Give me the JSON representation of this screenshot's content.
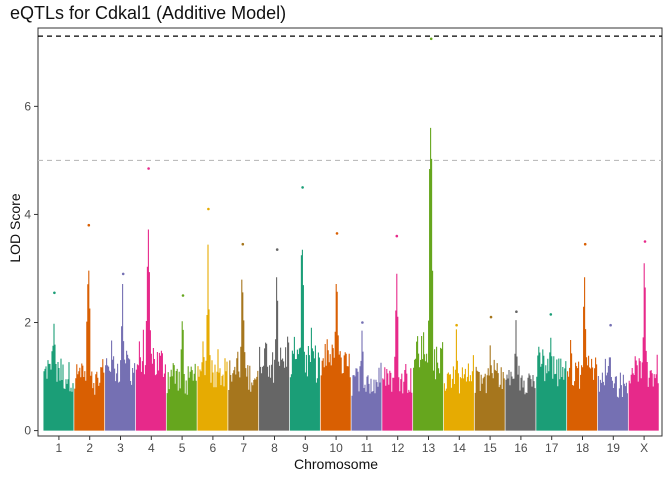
{
  "chart_data": {
    "type": "scatter",
    "title": "eQTLs for Cdkal1 (Additive Model)",
    "xlabel": "Chromosome",
    "ylabel": "LOD Score",
    "ylim": [
      -0.1,
      7.45
    ],
    "yticks": [
      0,
      2,
      4,
      6
    ],
    "grid": false,
    "legend": "none",
    "thresholds": [
      {
        "value": 7.3,
        "style": "dashed",
        "color": "#000000"
      },
      {
        "value": 5.0,
        "style": "dashed",
        "color": "#bdbdbd"
      }
    ],
    "chromosomes": [
      {
        "label": "1",
        "color": "#1b9e77",
        "max_lod": 2.55,
        "base_lod": 1.3
      },
      {
        "label": "2",
        "color": "#d95f02",
        "max_lod": 3.8,
        "base_lod": 1.2
      },
      {
        "label": "3",
        "color": "#7570b3",
        "max_lod": 2.9,
        "base_lod": 1.5
      },
      {
        "label": "4",
        "color": "#e7298a",
        "max_lod": 4.85,
        "base_lod": 1.6
      },
      {
        "label": "5",
        "color": "#66a61e",
        "max_lod": 2.5,
        "base_lod": 1.2
      },
      {
        "label": "6",
        "color": "#e6ab02",
        "max_lod": 4.1,
        "base_lod": 1.4
      },
      {
        "label": "7",
        "color": "#a6761d",
        "max_lod": 3.45,
        "base_lod": 1.3
      },
      {
        "label": "8",
        "color": "#666666",
        "max_lod": 3.35,
        "base_lod": 1.6
      },
      {
        "label": "9",
        "color": "#1b9e77",
        "max_lod": 4.5,
        "base_lod": 1.6
      },
      {
        "label": "10",
        "color": "#d95f02",
        "max_lod": 3.65,
        "base_lod": 1.5
      },
      {
        "label": "11",
        "color": "#7570b3",
        "max_lod": 2.0,
        "base_lod": 1.1
      },
      {
        "label": "12",
        "color": "#e7298a",
        "max_lod": 3.6,
        "base_lod": 1.2
      },
      {
        "label": "13",
        "color": "#66a61e",
        "max_lod": 7.25,
        "base_lod": 1.7
      },
      {
        "label": "14",
        "color": "#e6ab02",
        "max_lod": 1.95,
        "base_lod": 1.2
      },
      {
        "label": "15",
        "color": "#a6761d",
        "max_lod": 2.1,
        "base_lod": 1.2
      },
      {
        "label": "16",
        "color": "#666666",
        "max_lod": 2.2,
        "base_lod": 1.2
      },
      {
        "label": "17",
        "color": "#1b9e77",
        "max_lod": 2.15,
        "base_lod": 1.4
      },
      {
        "label": "18",
        "color": "#d95f02",
        "max_lod": 3.45,
        "base_lod": 1.4
      },
      {
        "label": "19",
        "color": "#7570b3",
        "max_lod": 1.95,
        "base_lod": 1.1
      },
      {
        "label": "X",
        "color": "#e7298a",
        "max_lod": 3.5,
        "base_lod": 1.3
      }
    ]
  }
}
